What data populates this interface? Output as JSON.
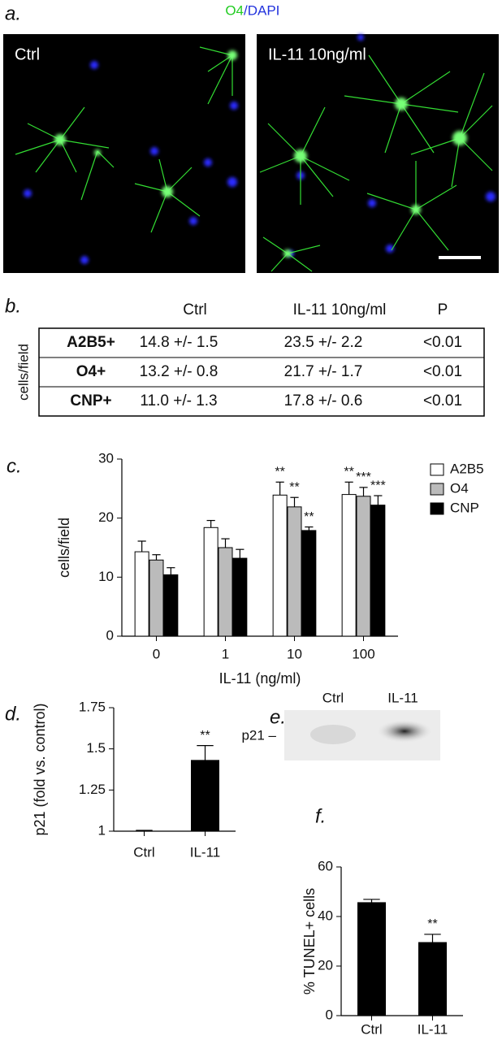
{
  "figure": {
    "a": {
      "panel": "a.",
      "stain_o4": "O4",
      "stain_dapi": "/DAPI",
      "left_label": "Ctrl",
      "right_label": "IL-11 10ng/ml"
    },
    "b": {
      "panel": "b.",
      "side_label": "cells/field",
      "headers": [
        "Ctrl",
        "IL-11 10ng/ml",
        "P"
      ],
      "rows": [
        [
          "A2B5+",
          "14.8 +/- 1.5",
          "23.5 +/- 2.2",
          "<0.01"
        ],
        [
          "O4+",
          "13.2 +/- 0.8",
          "21.7 +/- 1.7",
          "<0.01"
        ],
        [
          "CNP+",
          "11.0 +/- 1.3",
          "17.8 +/- 0.6",
          "<0.01"
        ]
      ]
    },
    "e": {
      "panel": "e.",
      "lanes": [
        "Ctrl",
        "IL-11"
      ],
      "band": "p21 –"
    }
  },
  "chart_data": [
    {
      "type": "bar",
      "panel": "c.",
      "ylabel": "cells/field",
      "xlabel": "IL-11 (ng/ml)",
      "categories": [
        "0",
        "1",
        "10",
        "100"
      ],
      "series": [
        {
          "name": "A2B5",
          "color": "#ffffff",
          "values": [
            14.3,
            18.4,
            23.9,
            24.0
          ],
          "errors": [
            1.8,
            1.2,
            2.2,
            2.1
          ],
          "annotations": [
            null,
            null,
            "**",
            "**"
          ]
        },
        {
          "name": "O4",
          "color": "#bbbbbb",
          "values": [
            12.9,
            15.0,
            21.9,
            23.7
          ],
          "errors": [
            0.9,
            1.5,
            1.6,
            1.5
          ],
          "annotations": [
            null,
            null,
            "**",
            "***"
          ]
        },
        {
          "name": "CNP",
          "color": "#000000",
          "values": [
            10.4,
            13.2,
            17.9,
            22.2
          ],
          "errors": [
            1.2,
            1.5,
            0.6,
            1.6
          ],
          "annotations": [
            null,
            null,
            "**",
            "***"
          ]
        }
      ],
      "ylim": [
        0,
        30
      ],
      "yticks": [
        0,
        10,
        20,
        30
      ],
      "legend": "right"
    },
    {
      "type": "bar",
      "panel": "d.",
      "ylabel": "p21 (fold vs. control)",
      "categories": [
        "Ctrl",
        "IL-11"
      ],
      "values": [
        1.0,
        1.43
      ],
      "errors": [
        0.005,
        0.09
      ],
      "annotations": [
        null,
        "**"
      ],
      "color": "#000000",
      "ylim": [
        1,
        1.75
      ],
      "yticks": [
        1,
        1.25,
        1.5,
        1.75
      ]
    },
    {
      "type": "bar",
      "panel": "f.",
      "ylabel": "% TUNEL+ cells",
      "categories": [
        "Ctrl",
        "IL-11"
      ],
      "values": [
        45.6,
        29.5
      ],
      "errors": [
        1.3,
        3.3
      ],
      "annotations": [
        null,
        "**"
      ],
      "color": "#000000",
      "ylim": [
        0,
        60
      ],
      "yticks": [
        0,
        20,
        40,
        60
      ]
    }
  ]
}
